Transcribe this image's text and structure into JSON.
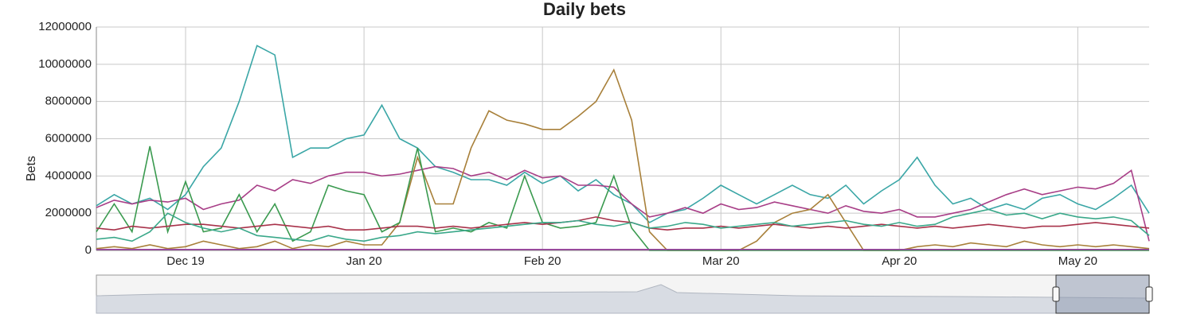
{
  "chart_data": {
    "type": "line",
    "title": "Daily bets",
    "y_label": "Bets",
    "categories": [
      null,
      null,
      null,
      null,
      null,
      "Dec 19",
      null,
      null,
      null,
      null,
      null,
      null,
      null,
      null,
      null,
      "Jan 20",
      null,
      null,
      null,
      null,
      null,
      null,
      null,
      null,
      null,
      "Feb 20",
      null,
      null,
      null,
      null,
      null,
      null,
      null,
      null,
      null,
      "Mar 20",
      null,
      null,
      null,
      null,
      null,
      null,
      null,
      null,
      null,
      "Apr 20",
      null,
      null,
      null,
      null,
      null,
      null,
      null,
      null,
      null,
      "May 20",
      null,
      null,
      null,
      null
    ],
    "ylim": [
      0,
      12000000
    ],
    "yticks": [
      0,
      2000000,
      4000000,
      6000000,
      8000000,
      10000000,
      12000000
    ],
    "grid": true,
    "series": [
      {
        "color": "#3aa6a6",
        "values": [
          2400000,
          3000000,
          2500000,
          2800000,
          2200000,
          3000000,
          4500000,
          5500000,
          8000000,
          11000000,
          10500000,
          5000000,
          5500000,
          5500000,
          6000000,
          6200000,
          7800000,
          6000000,
          5500000,
          4500000,
          4200000,
          3800000,
          3800000,
          3500000,
          4200000,
          3600000,
          4000000,
          3200000,
          3800000,
          3000000,
          2500000,
          1500000,
          2000000,
          2200000,
          2800000,
          3500000,
          3000000,
          2500000,
          3000000,
          3500000,
          3000000,
          2800000,
          3500000,
          2500000,
          3200000,
          3800000,
          5000000,
          3500000,
          2500000,
          2800000,
          2200000,
          2500000,
          2200000,
          2800000,
          3000000,
          2500000,
          2200000,
          2800000,
          3500000,
          2000000
        ]
      },
      {
        "color": "#a83e87",
        "values": [
          2300000,
          2700000,
          2500000,
          2700000,
          2600000,
          2800000,
          2200000,
          2500000,
          2700000,
          3500000,
          3200000,
          3800000,
          3600000,
          4000000,
          4200000,
          4200000,
          4000000,
          4100000,
          4300000,
          4500000,
          4400000,
          4000000,
          4200000,
          3800000,
          4300000,
          3900000,
          4000000,
          3500000,
          3500000,
          3400000,
          2500000,
          1800000,
          2000000,
          2300000,
          2000000,
          2500000,
          2200000,
          2300000,
          2600000,
          2400000,
          2200000,
          2000000,
          2400000,
          2100000,
          2000000,
          2200000,
          1800000,
          1800000,
          2000000,
          2200000,
          2600000,
          3000000,
          3300000,
          3000000,
          3200000,
          3400000,
          3300000,
          3600000,
          4300000,
          500000
        ]
      },
      {
        "color": "#a8803a",
        "values": [
          100000,
          200000,
          100000,
          300000,
          100000,
          200000,
          500000,
          300000,
          100000,
          200000,
          500000,
          100000,
          300000,
          200000,
          500000,
          300000,
          300000,
          1500000,
          5000000,
          2500000,
          2500000,
          5500000,
          7500000,
          7000000,
          6800000,
          6500000,
          6500000,
          7200000,
          8000000,
          9700000,
          7000000,
          1000000,
          0,
          0,
          0,
          0,
          0,
          500000,
          1500000,
          2000000,
          2200000,
          3000000,
          1500000,
          0,
          0,
          0,
          200000,
          300000,
          200000,
          400000,
          300000,
          200000,
          500000,
          300000,
          200000,
          300000,
          200000,
          300000,
          200000,
          100000
        ]
      },
      {
        "color": "#3a9a4f",
        "values": [
          1000000,
          2500000,
          1000000,
          5600000,
          1000000,
          3700000,
          1000000,
          1200000,
          3000000,
          1000000,
          2500000,
          500000,
          1000000,
          3500000,
          3200000,
          3000000,
          1000000,
          1500000,
          5500000,
          1000000,
          1200000,
          1000000,
          1500000,
          1200000,
          4000000,
          1500000,
          1200000,
          1300000,
          1500000,
          4000000,
          1200000,
          0,
          0,
          0,
          0,
          0,
          0,
          0,
          0,
          0,
          0,
          0,
          0,
          0,
          0,
          0,
          0,
          0,
          0,
          0,
          0,
          0,
          0,
          0,
          0,
          0,
          0,
          0,
          0,
          0
        ]
      },
      {
        "color": "#a8324a",
        "values": [
          1200000,
          1100000,
          1300000,
          1200000,
          1300000,
          1400000,
          1400000,
          1300000,
          1200000,
          1300000,
          1400000,
          1300000,
          1200000,
          1300000,
          1100000,
          1100000,
          1200000,
          1300000,
          1300000,
          1200000,
          1300000,
          1200000,
          1300000,
          1400000,
          1500000,
          1400000,
          1500000,
          1600000,
          1800000,
          1600000,
          1500000,
          1200000,
          1100000,
          1200000,
          1200000,
          1300000,
          1200000,
          1300000,
          1400000,
          1300000,
          1200000,
          1300000,
          1200000,
          1300000,
          1400000,
          1300000,
          1200000,
          1300000,
          1200000,
          1300000,
          1400000,
          1300000,
          1200000,
          1300000,
          1300000,
          1400000,
          1500000,
          1400000,
          1300000,
          1200000
        ]
      },
      {
        "color": "#3aa88a",
        "values": [
          600000,
          700000,
          500000,
          1000000,
          2000000,
          1500000,
          1200000,
          1000000,
          1200000,
          800000,
          700000,
          600000,
          500000,
          800000,
          600000,
          500000,
          700000,
          800000,
          1000000,
          900000,
          1000000,
          1100000,
          1200000,
          1300000,
          1400000,
          1500000,
          1500000,
          1600000,
          1400000,
          1300000,
          1500000,
          1200000,
          1300000,
          1500000,
          1400000,
          1200000,
          1300000,
          1400000,
          1500000,
          1300000,
          1400000,
          1500000,
          1600000,
          1400000,
          1300000,
          1500000,
          1300000,
          1400000,
          1800000,
          2000000,
          2200000,
          1900000,
          2000000,
          1700000,
          2000000,
          1800000,
          1700000,
          1800000,
          1600000,
          800000
        ]
      },
      {
        "color": "#9b3fa0",
        "values": [
          50000,
          50000,
          50000,
          50000,
          50000,
          50000,
          50000,
          50000,
          50000,
          50000,
          50000,
          50000,
          50000,
          50000,
          50000,
          50000,
          50000,
          50000,
          50000,
          50000,
          50000,
          50000,
          50000,
          50000,
          50000,
          50000,
          50000,
          50000,
          50000,
          50000,
          50000,
          50000,
          50000,
          50000,
          50000,
          50000,
          50000,
          50000,
          50000,
          50000,
          50000,
          50000,
          50000,
          50000,
          50000,
          50000,
          50000,
          50000,
          50000,
          50000,
          50000,
          50000,
          50000,
          50000,
          50000,
          50000,
          50000,
          50000,
          50000,
          50000
        ]
      }
    ]
  }
}
